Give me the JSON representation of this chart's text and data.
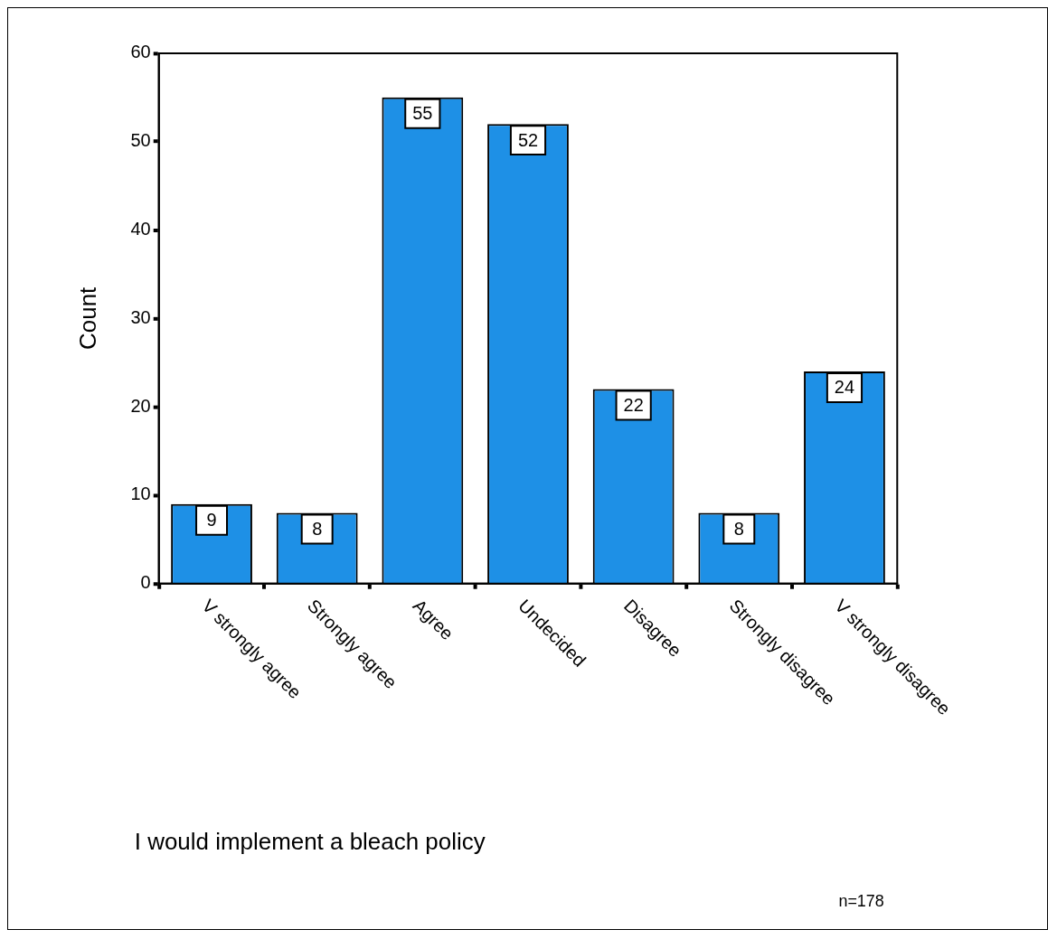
{
  "chart_data": {
    "type": "bar",
    "ylabel": "Count",
    "categories": [
      "V strongly agree",
      "Strongly agree",
      "Agree",
      "Undecided",
      "Disagree",
      "Strongly disagree",
      "V strongly disagree"
    ],
    "values": [
      9,
      8,
      55,
      52,
      22,
      8,
      24
    ],
    "color": "#1e90e6",
    "ylim": [
      0,
      60
    ],
    "yticks": [
      0,
      10,
      20,
      30,
      40,
      50,
      60
    ],
    "grid": false,
    "legend": false,
    "data_labels": true,
    "annotations": [
      "I would implement a bleach policy",
      "n=178"
    ]
  }
}
